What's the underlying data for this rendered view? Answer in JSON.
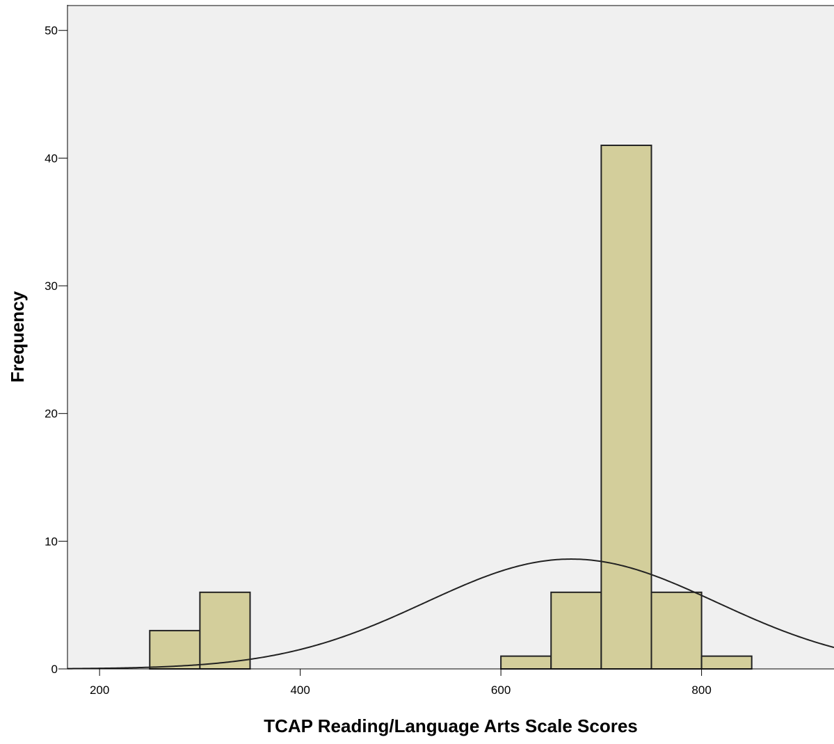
{
  "chart_data": {
    "type": "bar",
    "subtype": "histogram",
    "xlabel": "TCAP Reading/Language Arts Scale Scores",
    "ylabel": "Frequency",
    "xlim": [
      168,
      932
    ],
    "ylim": [
      0,
      52
    ],
    "x_ticks": [
      200,
      400,
      600,
      800
    ],
    "y_ticks": [
      0,
      10,
      20,
      30,
      40,
      50
    ],
    "bins": [
      {
        "start": 250,
        "end": 300,
        "count": 3
      },
      {
        "start": 300,
        "end": 350,
        "count": 6
      },
      {
        "start": 600,
        "end": 650,
        "count": 1
      },
      {
        "start": 650,
        "end": 700,
        "count": 6
      },
      {
        "start": 700,
        "end": 750,
        "count": 41
      },
      {
        "start": 750,
        "end": 800,
        "count": 6
      },
      {
        "start": 800,
        "end": 850,
        "count": 1
      }
    ],
    "normal_curve": {
      "mean": 670,
      "std_dev": 145,
      "peak": 8.6
    },
    "grid": false,
    "legend": "none",
    "colors": {
      "plot_background": "#f0f0f0",
      "bar_fill": "#d3ce9b",
      "bar_edge": "#222222",
      "curve": "#222222",
      "frame": "#808080"
    }
  }
}
